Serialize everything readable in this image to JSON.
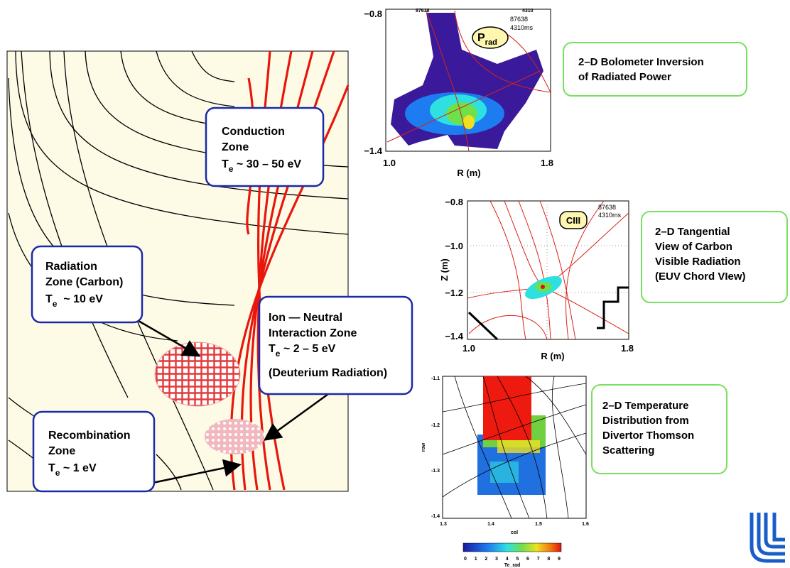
{
  "diagram": {
    "callouts": [
      {
        "lines": [
          "Conduction",
          "Zone"
        ],
        "te": {
          "symbol": "T",
          "subscript": "e",
          "value": " ~ 30 – 50 eV"
        }
      },
      {
        "lines": [
          "Radiation",
          "Zone (Carbon)"
        ],
        "te": {
          "symbol": "T",
          "subscript": "e",
          "value": "  ~ 10 eV"
        }
      },
      {
        "lines": [
          "Ion — Neutral",
          "Interaction Zone"
        ],
        "te": {
          "symbol": "T",
          "subscript": "e",
          "value": " ~ 2 – 5 eV"
        },
        "note": "(Deuterium Radiation)"
      },
      {
        "lines": [
          "Recombination",
          "Zone"
        ],
        "te": {
          "symbol": "T",
          "subscript": "e",
          "value": " ~ 1 eV"
        }
      }
    ]
  },
  "panels": [
    {
      "header_left": "87638",
      "header_right": "4310",
      "annotations": [
        "87638",
        "4310ms"
      ],
      "badge": {
        "symbol": "P",
        "subscript": "rad"
      },
      "yticks": [
        "−0.8",
        "−1.4"
      ],
      "xticks": [
        "1.0",
        "1.8"
      ],
      "x_label": "R (m)",
      "caption": [
        "2–D Bolometer Inversion",
        "of Radiated Power"
      ]
    },
    {
      "annotations": [
        "87638",
        "4310ms"
      ],
      "badge": "CIII",
      "yticks": [
        "−0.8",
        "−1.0",
        "−1.2",
        "−1.4"
      ],
      "xticks": [
        "1.0",
        "1.8"
      ],
      "x_label": "R (m)",
      "y_label": "Z (m)",
      "caption": [
        "2–D Tangential",
        "View of Carbon",
        "Visible Radiation",
        "(EUV Chord VIew)"
      ]
    },
    {
      "yticks": [
        "-1.1",
        "-1.2",
        "-1.3",
        "-1.4"
      ],
      "xticks": [
        "1.3",
        "1.4",
        "1.5",
        "1.6"
      ],
      "x_label": "col",
      "y_label": "row",
      "colorbar_ticks": [
        "0",
        "1",
        "2",
        "3",
        "4",
        "5",
        "6",
        "7",
        "8",
        "9"
      ],
      "colorbar_label": "Te_rad",
      "caption": [
        "2–D Temperature",
        "Distribution from",
        "Divertor Thomson",
        "Scattering"
      ]
    }
  ]
}
